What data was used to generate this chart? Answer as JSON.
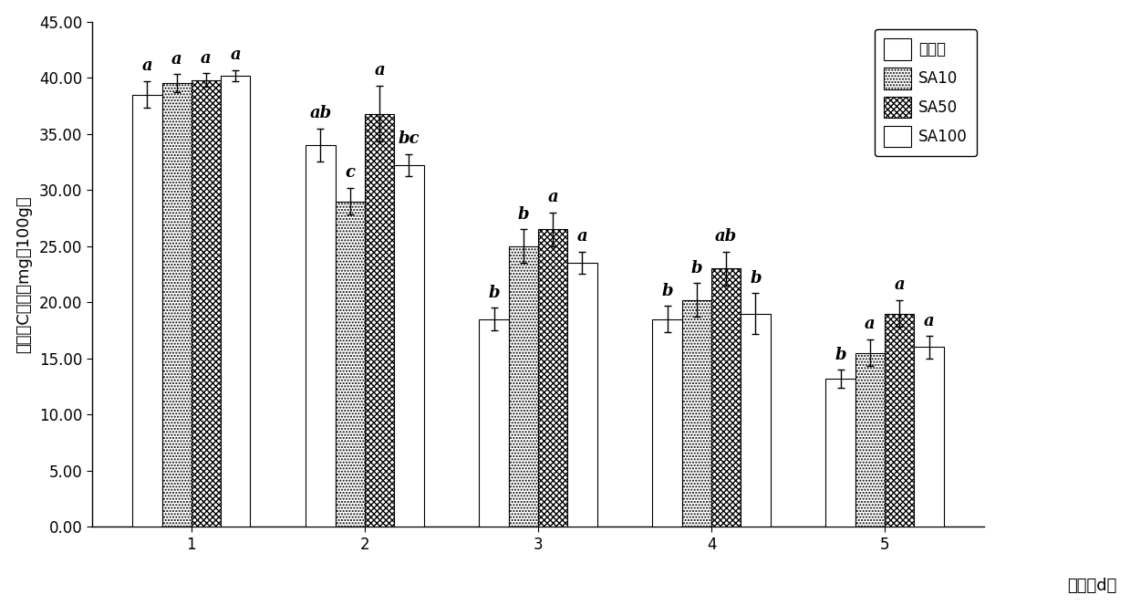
{
  "days": [
    1,
    2,
    3,
    4,
    5
  ],
  "series_order": [
    "水处理",
    "SA10",
    "SA50",
    "SA100"
  ],
  "series": {
    "水处理": {
      "values": [
        38.5,
        34.0,
        18.5,
        18.5,
        13.2
      ],
      "errors": [
        1.2,
        1.5,
        1.0,
        1.2,
        0.8
      ],
      "labels": [
        "a",
        "ab",
        "b",
        "b",
        "b"
      ],
      "hatch": "",
      "edgecolor": "black"
    },
    "SA10": {
      "values": [
        39.5,
        29.0,
        25.0,
        20.2,
        15.5
      ],
      "errors": [
        0.8,
        1.2,
        1.5,
        1.5,
        1.2
      ],
      "labels": [
        "a",
        "c",
        "b",
        "b",
        "a"
      ],
      "hatch": ".....",
      "edgecolor": "black"
    },
    "SA50": {
      "values": [
        39.8,
        36.8,
        26.5,
        23.0,
        19.0
      ],
      "errors": [
        0.6,
        2.5,
        1.5,
        1.5,
        1.2
      ],
      "labels": [
        "a",
        "a",
        "a",
        "ab",
        "a"
      ],
      "hatch": "xxxxx",
      "edgecolor": "black"
    },
    "SA100": {
      "values": [
        40.2,
        32.2,
        23.5,
        19.0,
        16.0
      ],
      "errors": [
        0.5,
        1.0,
        1.0,
        1.8,
        1.0
      ],
      "labels": [
        "a",
        "bc",
        "a",
        "b",
        "a"
      ],
      "hatch": "######",
      "edgecolor": "black"
    }
  },
  "ylabel": "维生素C含量（mg／100g）",
  "xlabel": "天数（d）",
  "ylim": [
    0,
    45
  ],
  "yticks": [
    0.0,
    5.0,
    10.0,
    15.0,
    20.0,
    25.0,
    30.0,
    35.0,
    40.0,
    45.0
  ],
  "bar_width": 0.17,
  "label_fontsize": 13,
  "tick_fontsize": 12,
  "legend_fontsize": 12,
  "annotation_fontsize": 13,
  "fig_width": 12.39,
  "fig_height": 6.63,
  "dpi": 100
}
